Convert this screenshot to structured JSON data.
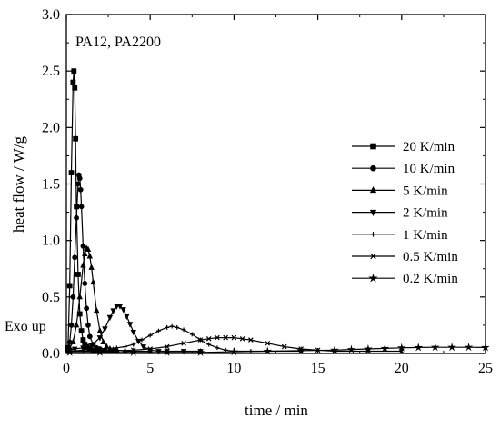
{
  "chart_data": {
    "type": "line",
    "title": "",
    "annotation": "PA12, PA2200",
    "exo_label": "Exo up",
    "xlabel": "time / min",
    "ylabel": "heat flow / W/g",
    "xlim": [
      0,
      25
    ],
    "ylim": [
      0,
      3.0
    ],
    "x_ticks": [
      0,
      5,
      10,
      15,
      20,
      25
    ],
    "y_ticks": [
      0.0,
      0.5,
      1.0,
      1.5,
      2.0,
      2.5,
      3.0
    ],
    "y_tick_labels": [
      "0.0",
      "0.5",
      "1.0",
      "1.5",
      "2.0",
      "2.5",
      "3.0"
    ],
    "grid": false,
    "legend_position": "right",
    "series": [
      {
        "name": "20 K/min",
        "marker": "square",
        "x": [
          0.1,
          0.2,
          0.3,
          0.4,
          0.45,
          0.5,
          0.55,
          0.6,
          0.7,
          0.8,
          0.9,
          1.0,
          1.1,
          1.2,
          1.4,
          1.6,
          1.8,
          2.0
        ],
        "values": [
          0.05,
          0.6,
          1.6,
          2.4,
          2.5,
          2.35,
          1.9,
          1.3,
          0.7,
          0.35,
          0.2,
          0.12,
          0.08,
          0.06,
          0.04,
          0.03,
          0.02,
          0.02
        ]
      },
      {
        "name": "10 K/min",
        "marker": "circle",
        "x": [
          0.1,
          0.2,
          0.3,
          0.4,
          0.5,
          0.6,
          0.7,
          0.75,
          0.8,
          0.85,
          0.9,
          1.0,
          1.1,
          1.2,
          1.3,
          1.4,
          1.6,
          1.8,
          2.0,
          2.3,
          2.6,
          3.0
        ],
        "values": [
          0.02,
          0.1,
          0.25,
          0.5,
          0.85,
          1.2,
          1.5,
          1.58,
          1.55,
          1.45,
          1.3,
          0.95,
          0.62,
          0.4,
          0.25,
          0.15,
          0.08,
          0.05,
          0.04,
          0.03,
          0.02,
          0.02
        ]
      },
      {
        "name": "5 K/min",
        "marker": "triangle-up",
        "x": [
          0.2,
          0.4,
          0.6,
          0.8,
          1.0,
          1.1,
          1.2,
          1.3,
          1.4,
          1.5,
          1.6,
          1.8,
          2.0,
          2.2,
          2.4,
          2.6,
          2.8,
          3.0,
          3.5,
          4.0,
          5.0
        ],
        "values": [
          0.05,
          0.1,
          0.25,
          0.5,
          0.78,
          0.88,
          0.93,
          0.92,
          0.86,
          0.76,
          0.63,
          0.38,
          0.2,
          0.1,
          0.06,
          0.04,
          0.03,
          0.03,
          0.02,
          0.02,
          0.02
        ]
      },
      {
        "name": "2 K/min",
        "marker": "triangle-down",
        "x": [
          0.2,
          0.5,
          1.0,
          1.5,
          2.0,
          2.3,
          2.6,
          2.8,
          3.0,
          3.2,
          3.4,
          3.6,
          3.8,
          4.0,
          4.3,
          4.6,
          5.0,
          5.5,
          6.0,
          7.0,
          8.0
        ],
        "values": [
          0.03,
          0.04,
          0.05,
          0.07,
          0.14,
          0.22,
          0.32,
          0.38,
          0.42,
          0.42,
          0.39,
          0.33,
          0.26,
          0.19,
          0.11,
          0.06,
          0.03,
          0.02,
          0.02,
          0.02,
          0.02
        ]
      },
      {
        "name": "1 K/min",
        "marker": "plus",
        "x": [
          0.2,
          1.0,
          2.0,
          3.0,
          3.5,
          4.0,
          4.5,
          5.0,
          5.5,
          6.0,
          6.3,
          6.6,
          7.0,
          7.5,
          8.0,
          8.5,
          9.0,
          9.5,
          10.0,
          11.0,
          12.0,
          14.0
        ],
        "values": [
          0.02,
          0.03,
          0.04,
          0.05,
          0.06,
          0.08,
          0.12,
          0.16,
          0.2,
          0.23,
          0.24,
          0.23,
          0.21,
          0.17,
          0.12,
          0.08,
          0.05,
          0.03,
          0.02,
          0.02,
          0.02,
          0.02
        ]
      },
      {
        "name": "0.5 K/min",
        "marker": "cross",
        "x": [
          0.2,
          2.0,
          4.0,
          5.0,
          6.0,
          7.0,
          8.0,
          8.5,
          9.0,
          9.5,
          10.0,
          10.5,
          11.0,
          12.0,
          13.0,
          14.0,
          15.0,
          16.0,
          18.0,
          20.0
        ],
        "values": [
          0.02,
          0.02,
          0.03,
          0.04,
          0.06,
          0.09,
          0.12,
          0.13,
          0.14,
          0.14,
          0.14,
          0.13,
          0.12,
          0.09,
          0.06,
          0.04,
          0.03,
          0.02,
          0.02,
          0.02
        ]
      },
      {
        "name": "0.2 K/min",
        "marker": "star",
        "x": [
          0.2,
          2,
          4,
          6,
          8,
          10,
          12,
          14,
          16,
          17,
          18,
          19,
          20,
          21,
          22,
          23,
          24,
          25
        ],
        "values": [
          0.01,
          0.01,
          0.01,
          0.01,
          0.01,
          0.015,
          0.02,
          0.025,
          0.03,
          0.035,
          0.04,
          0.045,
          0.05,
          0.053,
          0.055,
          0.055,
          0.055,
          0.053
        ]
      }
    ]
  }
}
